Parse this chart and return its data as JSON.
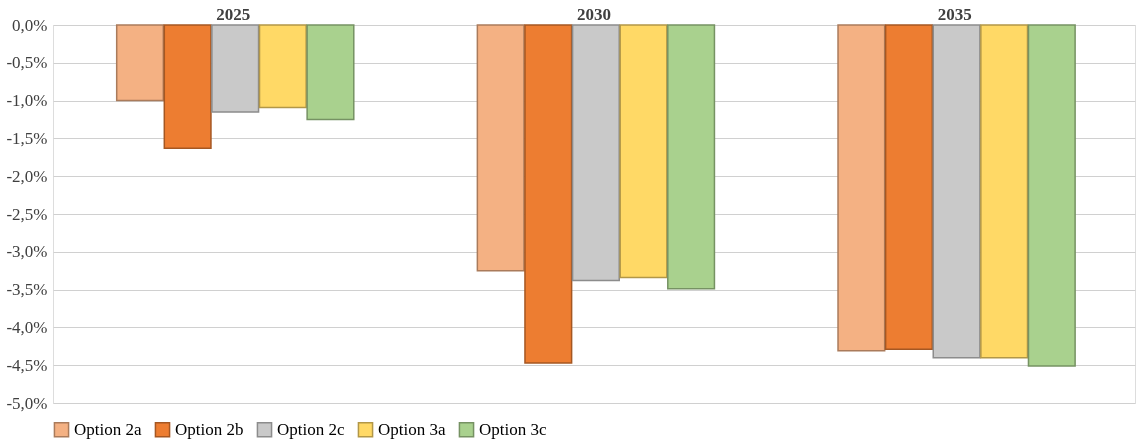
{
  "chart_data": {
    "type": "bar",
    "categories": [
      "2025",
      "2030",
      "2035"
    ],
    "series": [
      {
        "name": "Option 2a",
        "color": "#f4b183",
        "values": [
          -1.0,
          -3.25,
          -4.31
        ]
      },
      {
        "name": "Option 2b",
        "color": "#ed7d31",
        "values": [
          -1.63,
          -4.47,
          -4.29
        ]
      },
      {
        "name": "Option 2c",
        "color": "#c9c9c9",
        "values": [
          -1.15,
          -3.38,
          -4.4
        ]
      },
      {
        "name": "Option 3a",
        "color": "#ffd966",
        "values": [
          -1.09,
          -3.34,
          -4.4
        ]
      },
      {
        "name": "Option 3c",
        "color": "#a9d18e",
        "values": [
          -1.25,
          -3.49,
          -4.51
        ]
      }
    ],
    "ylim": [
      -5.0,
      0.0
    ],
    "yticks": [
      {
        "value": 0.0,
        "label": "0,0%"
      },
      {
        "value": -0.5,
        "label": "-0,5%"
      },
      {
        "value": -1.0,
        "label": "-1,0%"
      },
      {
        "value": -1.5,
        "label": "-1,5%"
      },
      {
        "value": -2.0,
        "label": "-2,0%"
      },
      {
        "value": -2.5,
        "label": "-2,5%"
      },
      {
        "value": -3.0,
        "label": "-3,0%"
      },
      {
        "value": -3.5,
        "label": "-3,5%"
      },
      {
        "value": -4.0,
        "label": "-4,0%"
      },
      {
        "value": -4.5,
        "label": "-4,5%"
      },
      {
        "value": -5.0,
        "label": "-5,0%"
      }
    ],
    "grid": "y",
    "legend": "bottom"
  }
}
